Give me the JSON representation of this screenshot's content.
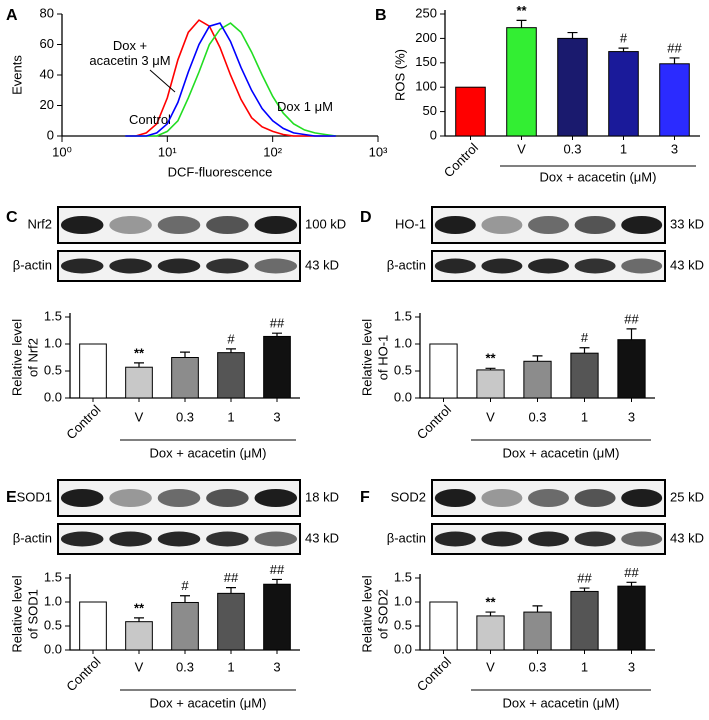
{
  "chart_data": [
    {
      "type": "line",
      "label": "A",
      "xlabel": "DCF-fluorescence",
      "ylabel": "Events",
      "log_x": true,
      "x": [
        3.98,
        5.01,
        6.31,
        7.94,
        10,
        12.6,
        15.8,
        20,
        25.1,
        31.6,
        39.8,
        50.1,
        63.1,
        79.4,
        100,
        126,
        158,
        200,
        251,
        316,
        398
      ],
      "xlim": [
        1,
        1000
      ],
      "xticks": [
        {
          "value": 1,
          "label": "10⁰"
        },
        {
          "value": 10,
          "label": "10¹"
        },
        {
          "value": 100,
          "label": "10²"
        },
        {
          "value": 1000,
          "label": "10³"
        }
      ],
      "ylim": [
        0,
        80
      ],
      "yticks": [
        0,
        20,
        40,
        60,
        80
      ],
      "series": [
        {
          "name": "Control",
          "color": "#ff0000",
          "values": [
            0,
            0,
            2,
            8,
            25,
            50,
            68,
            76,
            72,
            58,
            40,
            24,
            12,
            6,
            3,
            1,
            0,
            0,
            0,
            0,
            0
          ]
        },
        {
          "name": "Dox 1 μM",
          "color": "#22dd22",
          "values": [
            0,
            0,
            0,
            0,
            3,
            10,
            25,
            42,
            60,
            70,
            74,
            68,
            55,
            40,
            26,
            15,
            8,
            4,
            2,
            1,
            0
          ]
        },
        {
          "name": "Dox + acacetin 3 μM",
          "color": "#0000ff",
          "values": [
            0,
            0,
            0,
            2,
            8,
            22,
            42,
            60,
            72,
            74,
            62,
            45,
            30,
            18,
            10,
            5,
            2,
            1,
            0,
            0,
            0
          ]
        }
      ]
    },
    {
      "type": "bar",
      "label": "B",
      "ylabel": "ROS (%)",
      "categories": [
        "Control",
        "V",
        "0.3",
        "1",
        "3"
      ],
      "group_label": "Dox + acacetin (μM)",
      "values": [
        100,
        222,
        200,
        173,
        148
      ],
      "errors": [
        0,
        15,
        12,
        7,
        12
      ],
      "annotations": [
        null,
        "**",
        null,
        "#",
        "##"
      ],
      "colors": [
        "#ff0000",
        "#33ee33",
        "#1a1a6e",
        "#1a1a9a",
        "#2b2bff"
      ],
      "ylim": [
        0,
        250
      ],
      "yticks": [
        0,
        50,
        100,
        150,
        200,
        250
      ]
    },
    {
      "type": "bar",
      "label": "C",
      "blots": [
        {
          "protein": "Nrf2",
          "size": "100 kD"
        },
        {
          "protein": "β-actin",
          "size": "43 kD"
        }
      ],
      "ylabel": [
        "Relative level",
        "of Nrf2"
      ],
      "categories": [
        "Control",
        "V",
        "0.3",
        "1",
        "3"
      ],
      "group_label": "Dox + acacetin (μM)",
      "values": [
        1.0,
        0.57,
        0.75,
        0.84,
        1.14
      ],
      "errors": [
        0,
        0.08,
        0.1,
        0.07,
        0.06
      ],
      "annotations": [
        null,
        "**",
        null,
        "#",
        "##"
      ],
      "colors": [
        "#ffffff",
        "#c8c8c8",
        "#8c8c8c",
        "#555555",
        "#111111"
      ],
      "ylim": [
        0,
        1.5
      ],
      "yticks": [
        {
          "value": 0,
          "label": "0.0"
        },
        {
          "value": 0.5,
          "label": "0.5"
        },
        {
          "value": 1,
          "label": "1.0"
        },
        {
          "value": 1.5,
          "label": "1.5"
        }
      ]
    },
    {
      "type": "bar",
      "label": "D",
      "blots": [
        {
          "protein": "HO-1",
          "size": "33 kD"
        },
        {
          "protein": "β-actin",
          "size": "43 kD"
        }
      ],
      "ylabel": [
        "Relative level",
        "of HO-1"
      ],
      "categories": [
        "Control",
        "V",
        "0.3",
        "1",
        "3"
      ],
      "group_label": "Dox + acacetin (μM)",
      "values": [
        1.0,
        0.52,
        0.68,
        0.83,
        1.08
      ],
      "errors": [
        0,
        0.03,
        0.1,
        0.1,
        0.2
      ],
      "annotations": [
        null,
        "**",
        null,
        "#",
        "##"
      ],
      "colors": [
        "#ffffff",
        "#c8c8c8",
        "#8c8c8c",
        "#555555",
        "#111111"
      ],
      "ylim": [
        0,
        1.5
      ],
      "yticks": [
        {
          "value": 0,
          "label": "0.0"
        },
        {
          "value": 0.5,
          "label": "0.5"
        },
        {
          "value": 1,
          "label": "1.0"
        },
        {
          "value": 1.5,
          "label": "1.5"
        }
      ]
    },
    {
      "type": "bar",
      "label": "E",
      "blots": [
        {
          "protein": "SOD1",
          "size": "18 kD"
        },
        {
          "protein": "β-actin",
          "size": "43 kD"
        }
      ],
      "ylabel": [
        "Relative level",
        "of SOD1"
      ],
      "categories": [
        "Control",
        "V",
        "0.3",
        "1",
        "3"
      ],
      "group_label": "Dox + acacetin (μM)",
      "values": [
        1.0,
        0.59,
        0.99,
        1.18,
        1.37
      ],
      "errors": [
        0,
        0.08,
        0.14,
        0.12,
        0.1
      ],
      "annotations": [
        null,
        "**",
        "#",
        "##",
        "##"
      ],
      "colors": [
        "#ffffff",
        "#c8c8c8",
        "#8c8c8c",
        "#555555",
        "#111111"
      ],
      "ylim": [
        0,
        1.5
      ],
      "yticks": [
        {
          "value": 0,
          "label": "0.0"
        },
        {
          "value": 0.5,
          "label": "0.5"
        },
        {
          "value": 1,
          "label": "1.0"
        },
        {
          "value": 1.5,
          "label": "1.5"
        }
      ]
    },
    {
      "type": "bar",
      "label": "F",
      "blots": [
        {
          "protein": "SOD2",
          "size": "25 kD"
        },
        {
          "protein": "β-actin",
          "size": "43 kD"
        }
      ],
      "ylabel": [
        "Relative level",
        "of SOD2"
      ],
      "categories": [
        "Control",
        "V",
        "0.3",
        "1",
        "3"
      ],
      "group_label": "Dox + acacetin (μM)",
      "values": [
        1.0,
        0.71,
        0.79,
        1.22,
        1.33
      ],
      "errors": [
        0,
        0.08,
        0.13,
        0.07,
        0.08
      ],
      "annotations": [
        null,
        "**",
        null,
        "##",
        "##"
      ],
      "colors": [
        "#ffffff",
        "#c8c8c8",
        "#8c8c8c",
        "#555555",
        "#111111"
      ],
      "ylim": [
        0,
        1.5
      ],
      "yticks": [
        {
          "value": 0,
          "label": "0.0"
        },
        {
          "value": 0.5,
          "label": "0.5"
        },
        {
          "value": 1,
          "label": "1.0"
        },
        {
          "value": 1.5,
          "label": "1.5"
        }
      ]
    }
  ]
}
